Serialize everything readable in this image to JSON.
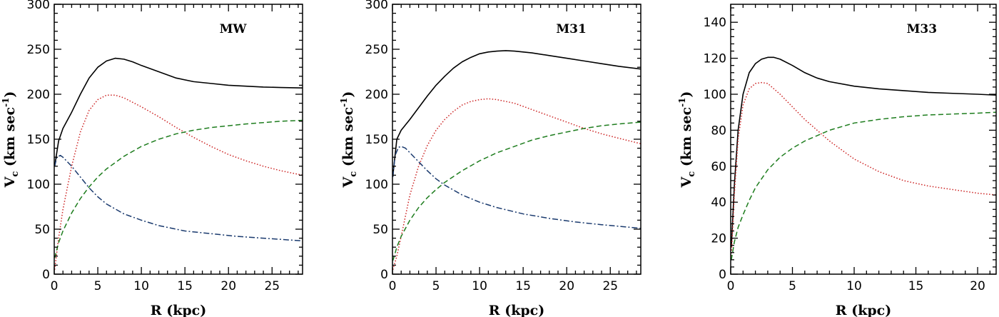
{
  "chart_data": [
    {
      "type": "line",
      "title": "MW",
      "xlabel": "R (kpc)",
      "ylabel": "V",
      "ylabel_sub": "c",
      "ylabel_unit": "(km sec",
      "ylabel_sup": "-1",
      "ylabel_close": ")",
      "xlim": [
        0,
        28.5
      ],
      "ylim": [
        0,
        300
      ],
      "xticks": [
        0,
        5,
        10,
        15,
        20,
        25
      ],
      "yticks": [
        0,
        50,
        100,
        150,
        200,
        250,
        300
      ],
      "grid": false,
      "series": [
        {
          "style": "solid",
          "color": "#000000",
          "x": [
            0.05,
            0.5,
            1,
            2,
            3,
            4,
            5,
            6,
            7,
            8,
            9,
            10,
            12,
            14,
            16,
            18,
            20,
            22,
            24,
            26,
            28.5
          ],
          "y": [
            120,
            148,
            162,
            180,
            200,
            218,
            230,
            237,
            240,
            239,
            236,
            232,
            225,
            218,
            214,
            212,
            210,
            209,
            208,
            207.5,
            207
          ]
        },
        {
          "style": "dotted",
          "color": "#cc2222",
          "x": [
            0.05,
            0.5,
            1,
            2,
            3,
            4,
            5,
            6,
            7,
            8,
            9,
            10,
            12,
            14,
            16,
            18,
            20,
            22,
            24,
            26,
            28.5
          ],
          "y": [
            5,
            40,
            72,
            120,
            158,
            182,
            194,
            199,
            199,
            196,
            191,
            186,
            175,
            163,
            152,
            142,
            133,
            126,
            120,
            115,
            110
          ]
        },
        {
          "style": "dashed",
          "color": "#1e7d1e",
          "x": [
            0.05,
            0.5,
            1,
            2,
            3,
            4,
            5,
            6,
            8,
            10,
            12,
            14,
            16,
            18,
            20,
            22,
            24,
            26,
            28.5
          ],
          "y": [
            18,
            35,
            48,
            68,
            84,
            97,
            108,
            117,
            131,
            142,
            150,
            156,
            160,
            163,
            165,
            167,
            168.5,
            170,
            171
          ]
        },
        {
          "style": "dashdot",
          "color": "#1a3a6e",
          "x": [
            0.05,
            0.3,
            0.7,
            1,
            2,
            3,
            4,
            5,
            6,
            8,
            10,
            12,
            15,
            18,
            21,
            24,
            28.5
          ],
          "y": [
            120,
            130,
            132,
            130,
            120,
            108,
            96,
            86,
            78,
            67,
            60,
            54,
            48,
            45,
            42,
            40,
            37
          ]
        }
      ]
    },
    {
      "type": "line",
      "title": "M31",
      "xlabel": "R (kpc)",
      "ylabel": "V",
      "ylabel_sub": "c",
      "ylabel_unit": "(km sec",
      "ylabel_sup": "-1",
      "ylabel_close": ")",
      "xlim": [
        0,
        28.5
      ],
      "ylim": [
        0,
        300
      ],
      "xticks": [
        0,
        5,
        10,
        15,
        20,
        25
      ],
      "yticks": [
        0,
        50,
        100,
        150,
        200,
        250,
        300
      ],
      "grid": false,
      "series": [
        {
          "style": "solid",
          "color": "#000000",
          "x": [
            0.05,
            0.5,
            1,
            2,
            3,
            4,
            5,
            6,
            7,
            8,
            9,
            10,
            11,
            12,
            13,
            14,
            16,
            18,
            20,
            22,
            24,
            26,
            28.5
          ],
          "y": [
            110,
            150,
            160,
            172,
            185,
            198,
            210,
            220,
            229,
            236,
            241,
            245,
            247,
            248,
            248.5,
            248,
            246,
            243,
            240,
            237,
            234,
            231,
            228
          ]
        },
        {
          "style": "dotted",
          "color": "#cc2222",
          "x": [
            0.05,
            0.5,
            1,
            2,
            3,
            4,
            5,
            6,
            7,
            8,
            9,
            10,
            11,
            12,
            14,
            16,
            18,
            20,
            22,
            24,
            26,
            28.5
          ],
          "y": [
            5,
            20,
            42,
            88,
            120,
            143,
            160,
            172,
            181,
            188,
            192,
            194,
            195,
            194,
            190,
            183,
            176,
            169,
            162,
            156,
            151,
            145
          ]
        },
        {
          "style": "dashed",
          "color": "#1e7d1e",
          "x": [
            0.05,
            0.5,
            1,
            2,
            3,
            4,
            5,
            6,
            8,
            10,
            12,
            14,
            16,
            18,
            20,
            22,
            24,
            26,
            28.5
          ],
          "y": [
            15,
            30,
            42,
            60,
            74,
            85,
            94,
            102,
            115,
            126,
            135,
            142,
            149,
            154,
            158,
            162,
            165,
            167,
            169
          ]
        },
        {
          "style": "dashdot",
          "color": "#1a3a6e",
          "x": [
            0.05,
            0.3,
            0.7,
            1,
            1.5,
            2,
            3,
            4,
            5,
            6,
            8,
            10,
            12,
            15,
            18,
            21,
            24,
            28.5
          ],
          "y": [
            108,
            132,
            141,
            142,
            140,
            135,
            125,
            115,
            106,
            99,
            88,
            80,
            74,
            67,
            62,
            58,
            55,
            51
          ]
        }
      ]
    },
    {
      "type": "line",
      "title": "M33",
      "xlabel": "R (kpc)",
      "ylabel": "V",
      "ylabel_sub": "c",
      "ylabel_unit": "(km sec",
      "ylabel_sup": "-1",
      "ylabel_close": ")",
      "xlim": [
        0,
        21.5
      ],
      "ylim": [
        0,
        150
      ],
      "xticks": [
        0,
        5,
        10,
        15,
        20
      ],
      "yticks": [
        0,
        20,
        40,
        60,
        80,
        100,
        120,
        140
      ],
      "grid": false,
      "series": [
        {
          "style": "solid",
          "color": "#000000",
          "x": [
            0.05,
            0.3,
            0.6,
            1,
            1.5,
            2,
            2.5,
            3,
            3.5,
            4,
            5,
            6,
            7,
            8,
            10,
            12,
            14,
            16,
            18,
            20,
            21.5
          ],
          "y": [
            15,
            50,
            80,
            100,
            112,
            117,
            119.5,
            120.5,
            120.5,
            119.5,
            116,
            112,
            109,
            107,
            104.5,
            103,
            102,
            101,
            100.5,
            100,
            99.5
          ]
        },
        {
          "style": "dotted",
          "color": "#cc2222",
          "x": [
            0.05,
            0.3,
            0.6,
            1,
            1.5,
            2,
            2.5,
            3,
            3.5,
            4,
            5,
            6,
            7,
            8,
            10,
            12,
            14,
            16,
            18,
            20,
            21.5
          ],
          "y": [
            10,
            45,
            75,
            94,
            103,
            106,
            106.5,
            106,
            103,
            100,
            93,
            86,
            80,
            74,
            64,
            57,
            52,
            49,
            47,
            45,
            44
          ]
        },
        {
          "style": "dashed",
          "color": "#1e7d1e",
          "x": [
            0.05,
            0.3,
            0.6,
            1,
            1.5,
            2,
            3,
            4,
            5,
            6,
            8,
            10,
            12,
            14,
            16,
            18,
            20,
            21.5
          ],
          "y": [
            8,
            18,
            26,
            33,
            41,
            48,
            58,
            65,
            70,
            74,
            80,
            84,
            86,
            87.5,
            88.5,
            89,
            89.5,
            90
          ]
        }
      ]
    }
  ]
}
